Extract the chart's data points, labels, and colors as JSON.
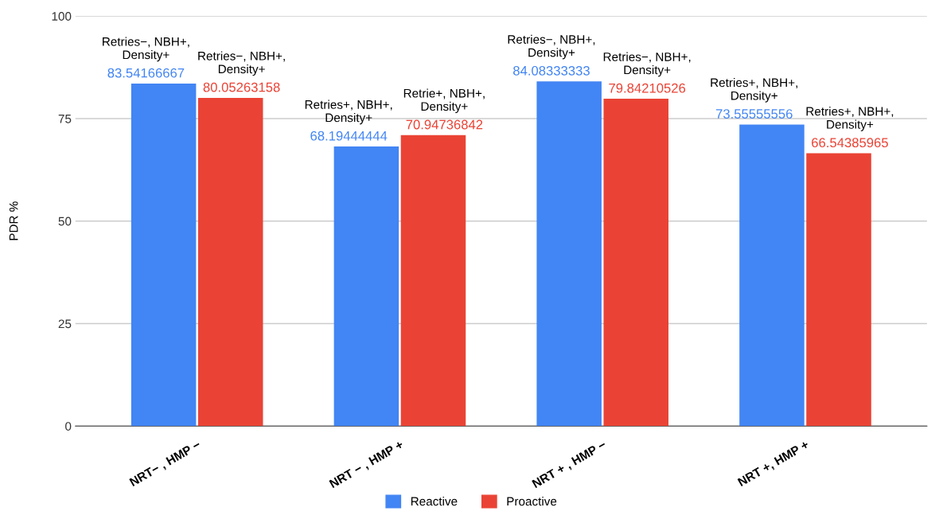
{
  "chart_data": {
    "type": "bar",
    "ylabel": "PDR %",
    "categories": [
      "NRT− , HMP −",
      "NRT − , HMP +",
      "NRT + , HMP −",
      "NRT +, HMP +"
    ],
    "series": [
      {
        "name": "Reactive",
        "color": "#4285f4",
        "values": [
          83.54166667,
          68.19444444,
          84.08333333,
          73.55555556
        ]
      },
      {
        "name": "Proactive",
        "color": "#ea4335",
        "values": [
          80.05263158,
          70.94736842,
          79.84210526,
          66.54385965
        ]
      }
    ],
    "data_labels": true,
    "annotations": [
      "Retries−, NBH+,\nDensity+",
      "Retries−, NBH+,\nDensity+",
      "Retries+, NBH+,\nDensity+",
      "Retrie+, NBH+,\nDensity+",
      "Retries−, NBH+,\nDensity+",
      "Retries−, NBH+,\nDensity+",
      "Retries+, NBH+,\nDensity+",
      "Retries+, NBH+,\nDensity+"
    ],
    "ylim": [
      0,
      100
    ],
    "yticks": [
      0,
      25,
      50,
      75,
      100
    ],
    "grid": "y",
    "legend": "bottom"
  }
}
